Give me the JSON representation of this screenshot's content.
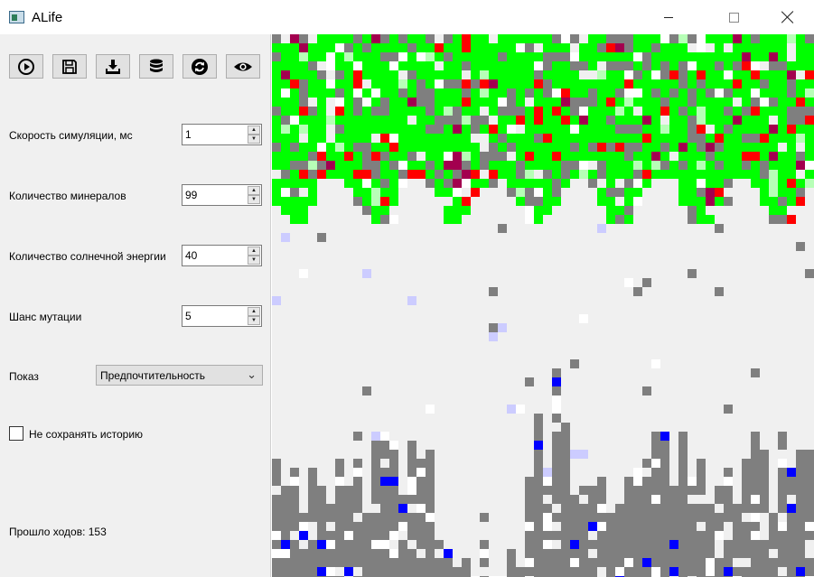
{
  "window": {
    "title": "ALife"
  },
  "toolbar": {
    "buttons": [
      {
        "name": "play-button",
        "icon": "play-circle-icon"
      },
      {
        "name": "save-button",
        "icon": "floppy-disk-icon"
      },
      {
        "name": "load-button",
        "icon": "download-icon"
      },
      {
        "name": "database-button",
        "icon": "database-icon"
      },
      {
        "name": "reset-button",
        "icon": "refresh-icon"
      },
      {
        "name": "view-button",
        "icon": "eye-icon"
      }
    ]
  },
  "settings": {
    "speed": {
      "label": "Скорость симуляции, мс",
      "value": "1"
    },
    "minerals": {
      "label": "Количество минералов",
      "value": "99"
    },
    "solar": {
      "label": "Количество солнечной энергии",
      "value": "40"
    },
    "mutation": {
      "label": "Шанс мутации",
      "value": "5"
    },
    "display": {
      "label": "Показ",
      "value": "Предпочтительность"
    },
    "history": {
      "label": "Не сохранять историю",
      "checked": false
    }
  },
  "status": {
    "turns_passed": "Прошло ходов: 153"
  },
  "colors": {
    "plant": "#00ff00",
    "predator": "#ff0000",
    "mineral": "#0000ff",
    "organic": "#7f7f7f",
    "empty": "#f0f0f0"
  }
}
